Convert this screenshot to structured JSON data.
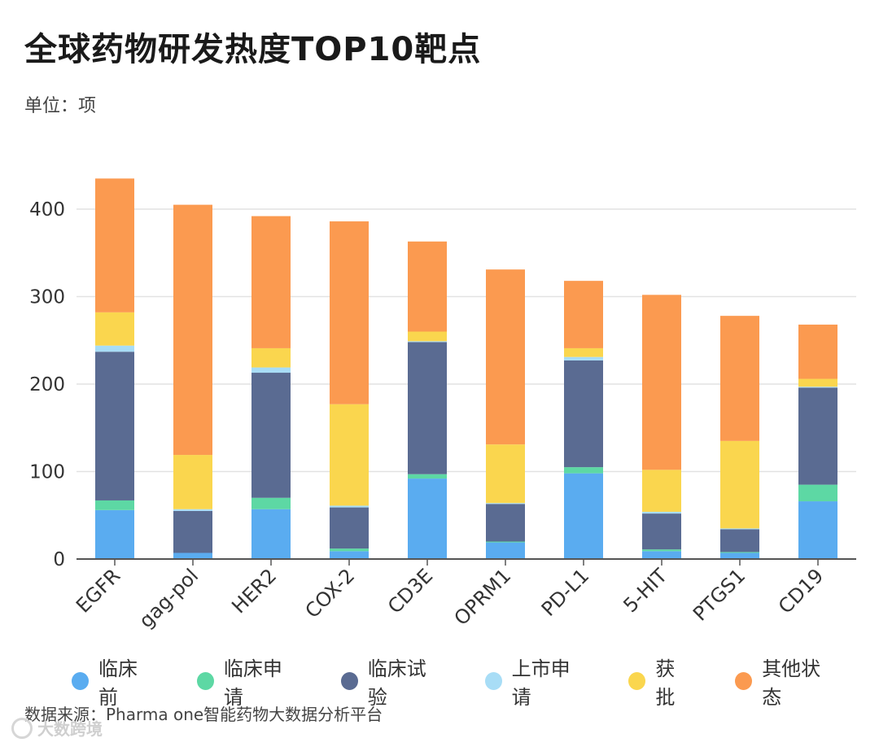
{
  "title": "全球药物研发热度TOP10靶点",
  "unit": "单位：项",
  "source": "数据来源：Pharma one智能药物大数据分析平台",
  "watermark": "大数跨境",
  "chart_data": {
    "type": "bar",
    "stacked": true,
    "categories": [
      "EGFR",
      "gag-pol",
      "HER2",
      "COX-2",
      "CD3E",
      "OPRM1",
      "PD-L1",
      "5-HIT",
      "PTGS1",
      "CD19"
    ],
    "series": [
      {
        "name": "临床前",
        "color": "#5aacf0",
        "values": [
          56,
          7,
          57,
          9,
          92,
          19,
          98,
          9,
          7,
          66
        ]
      },
      {
        "name": "临床申请",
        "color": "#5dd8a4",
        "values": [
          11,
          0,
          13,
          3,
          5,
          1,
          7,
          2,
          1,
          19
        ]
      },
      {
        "name": "临床试验",
        "color": "#5a6b92",
        "values": [
          170,
          48,
          143,
          47,
          151,
          43,
          122,
          41,
          26,
          111
        ]
      },
      {
        "name": "上市申请",
        "color": "#a8ddf6",
        "values": [
          7,
          2,
          6,
          2,
          1,
          1,
          4,
          2,
          1,
          1
        ]
      },
      {
        "name": "获批",
        "color": "#fad64e",
        "values": [
          38,
          62,
          22,
          116,
          11,
          67,
          10,
          48,
          100,
          9
        ]
      },
      {
        "name": "其他状态",
        "color": "#fb9a50",
        "values": [
          153,
          286,
          151,
          209,
          103,
          200,
          77,
          200,
          143,
          62
        ]
      }
    ],
    "ylim": [
      0,
      450
    ],
    "yticks": [
      0,
      100,
      200,
      300,
      400
    ],
    "grid": true,
    "legend": "bottom",
    "xlabel": "",
    "ylabel": ""
  }
}
